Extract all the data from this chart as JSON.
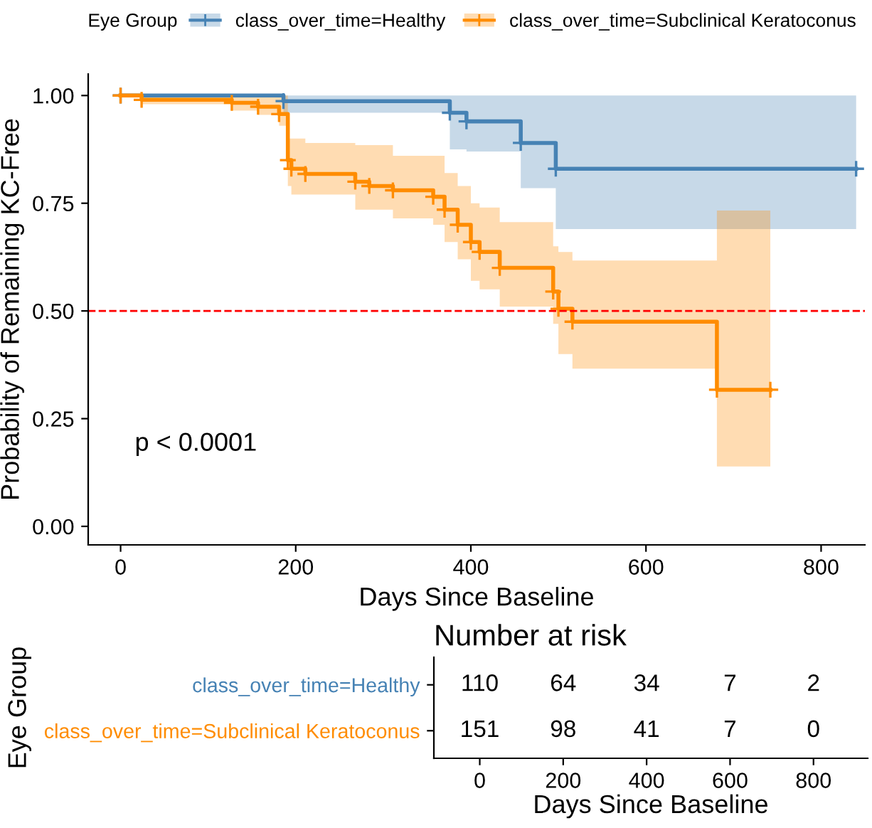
{
  "chart_data": [
    {
      "type": "step",
      "xlabel": "Days Since Baseline",
      "ylabel": "Probability of Remaining KC-Free",
      "legend_title": "Eye Group",
      "legend": "top",
      "grid": false,
      "marker": "cross",
      "line_style": "solid",
      "series": [
        {
          "name": "class_over_time=Healthy",
          "color": "#4682b4",
          "x": [
            0,
            186,
            376,
            395,
            457,
            497,
            840
          ],
          "values": [
            1,
            0.987,
            0.96,
            0.94,
            0.89,
            0.83,
            0.83
          ],
          "lower": [
            1,
            0.96,
            0.875,
            0.87,
            0.785,
            0.69,
            0.69
          ],
          "upper": [
            1,
            1,
            1,
            1,
            1,
            1,
            1
          ]
        },
        {
          "name": "class_over_time=Subclinical Keratoconus",
          "color": "#ff8c00",
          "x": [
            0,
            24,
            127,
            157,
            181,
            191,
            195,
            211,
            268,
            284,
            311,
            357,
            370,
            385,
            400,
            410,
            433,
            494,
            500,
            516,
            681,
            742
          ],
          "values": [
            1,
            0.99,
            0.983,
            0.974,
            0.957,
            0.85,
            0.83,
            0.818,
            0.8,
            0.79,
            0.78,
            0.765,
            0.735,
            0.7,
            0.66,
            0.637,
            0.6,
            0.545,
            0.505,
            0.475,
            0.317,
            0.317
          ],
          "upper": [
            1,
            1,
            1,
            1,
            1,
            0.9,
            0.9,
            0.89,
            0.885,
            0.885,
            0.86,
            0.86,
            0.82,
            0.79,
            0.75,
            0.74,
            0.706,
            0.65,
            0.637,
            0.617,
            0.733,
            0.733
          ],
          "lower": [
            1,
            0.98,
            0.965,
            0.955,
            0.93,
            0.79,
            0.77,
            0.77,
            0.735,
            0.735,
            0.715,
            0.7,
            0.66,
            0.62,
            0.57,
            0.55,
            0.51,
            0.47,
            0.4,
            0.366,
            0.139,
            0.139
          ]
        }
      ],
      "xlim": [
        -37,
        850
      ],
      "xticks": [
        0,
        200,
        400,
        600,
        800
      ],
      "ylim": [
        -0.043,
        1.05
      ],
      "yticks": [
        {
          "value": 0,
          "label": "0.00"
        },
        {
          "value": 0.25,
          "label": "0.25"
        },
        {
          "value": 0.5,
          "label": "0.50"
        },
        {
          "value": 0.75,
          "label": "0.75"
        },
        {
          "value": 1,
          "label": "1.00"
        }
      ],
      "ref_lines": [
        {
          "axis": "y",
          "value": 0.5,
          "label": null,
          "color": "#ff0000",
          "line_style": "dashed"
        }
      ],
      "annotations": [
        "p < 0.0001"
      ]
    },
    {
      "type": "heatmap",
      "title": "Number at risk",
      "xlabel": "Days Since Baseline",
      "ylabel": "Eye Group",
      "data_labels": true,
      "categories": [
        "0",
        "200",
        "400",
        "600",
        "800"
      ],
      "y_categories": [
        "class_over_time=Healthy",
        "class_over_time=Subclinical Keratoconus"
      ],
      "colors": [
        "#4682b4",
        "#ff8c00"
      ],
      "cells": [
        [
          110,
          64,
          34,
          7,
          2
        ],
        [
          151,
          98,
          41,
          7,
          0
        ]
      ]
    }
  ]
}
